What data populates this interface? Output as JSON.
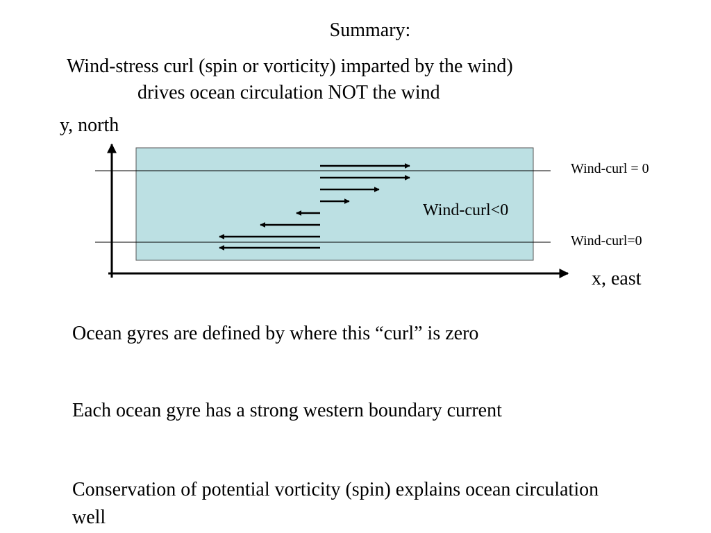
{
  "slide": {
    "title": "Summary:",
    "heading_line_1": "Wind-stress curl (spin or vorticity) imparted by the wind)",
    "heading_line_2": "drives ocean circulation NOT the wind"
  },
  "diagram": {
    "y_axis_label": "y, north",
    "x_axis_label": "x, east",
    "region_label": "Wind-curl<0",
    "top_line_label": "Wind-curl = 0",
    "bottom_line_label": "Wind-curl=0",
    "basin_color": "#bce0e3"
  },
  "points": [
    "Ocean gyres are defined by where this “curl” is zero",
    "Each ocean gyre has a strong western boundary current",
    "Conservation of potential vorticity (spin) explains ocean circulation well"
  ]
}
